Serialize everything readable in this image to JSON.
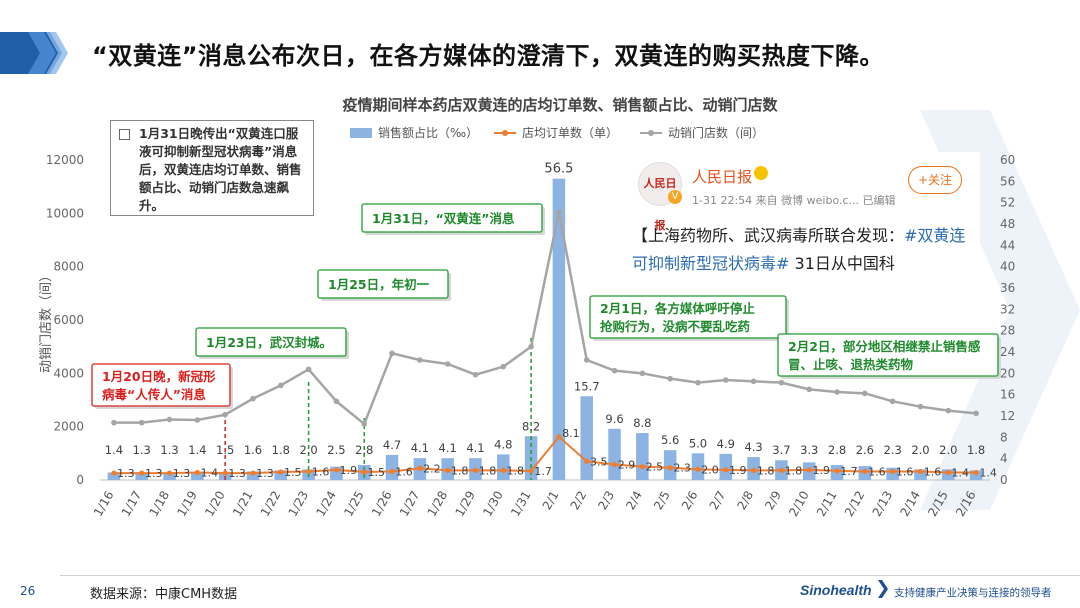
{
  "headline": "“双黄连”消息公布次日，在各方媒体的澄清下，双黄连的购买热度下降。",
  "note": "1月31日晚传出“双黄连口服液可抑制新型冠状病毒”消息后，双黄连店均订单数、销售额占比、动销门店数急速飙升。",
  "weibo": {
    "logo": "人民日报",
    "name": "人民日报",
    "meta": "1-31 22:54  来自 微博 weibo.c...   已编辑",
    "follow": "+关注",
    "body_main": "【上海药物所、武汉病毒所联合发现：",
    "body_tag": "#双黄连可抑制新型冠状病毒#",
    "body_tail": " 31日从中国科"
  },
  "footer": {
    "page": "26",
    "source": "数据来源：中康CMH数据",
    "brand": "Sinohealth",
    "slogan": "支持健康产业决策与连接的领导者"
  },
  "colors": {
    "bar": "#8db3e2",
    "orders": "#ed7d31",
    "stores": "#a5a5a5",
    "annot": "#1f9b32",
    "alert": "#d9201e"
  },
  "chart_data": {
    "type": "bar",
    "title": "疫情期间样本药店双黄连的店均订单数、销售额占比、动销门店数",
    "ylabel": "动销门店数（间）",
    "ylim": [
      0,
      12000
    ],
    "y2lim": [
      0,
      60
    ],
    "yticks": [
      0,
      2000,
      4000,
      6000,
      8000,
      10000,
      12000
    ],
    "y2ticks": [
      0,
      4,
      8,
      12,
      16,
      20,
      24,
      28,
      32,
      36,
      40,
      44,
      48,
      52,
      56,
      60
    ],
    "legend_position": "top",
    "categories": [
      "1/16",
      "1/17",
      "1/18",
      "1/19",
      "1/20",
      "1/21",
      "1/22",
      "1/23",
      "1/24",
      "1/25",
      "1/26",
      "1/27",
      "1/28",
      "1/29",
      "1/30",
      "1/31",
      "2/1",
      "2/2",
      "2/3",
      "2/4",
      "2/5",
      "2/6",
      "2/7",
      "2/8",
      "2/9",
      "2/10",
      "2/11",
      "2/12",
      "2/13",
      "2/14",
      "2/15",
      "2/16"
    ],
    "series": [
      {
        "name": "销售额占比（‰）",
        "type": "bar",
        "axis": "right",
        "values": [
          1.4,
          1.3,
          1.3,
          1.4,
          1.5,
          1.6,
          1.8,
          2.0,
          2.5,
          2.8,
          4.7,
          4.1,
          4.1,
          4.1,
          4.8,
          8.2,
          56.5,
          15.7,
          9.6,
          8.8,
          5.6,
          5.0,
          4.9,
          4.3,
          3.7,
          3.3,
          2.8,
          2.6,
          2.3,
          2.0,
          2.0,
          1.8
        ]
      },
      {
        "name": "店均订单数（单）",
        "type": "line",
        "axis": "right",
        "values": [
          1.3,
          1.3,
          1.3,
          1.4,
          1.3,
          1.3,
          1.5,
          1.6,
          1.9,
          1.5,
          1.6,
          2.2,
          1.8,
          1.8,
          1.8,
          1.7,
          8.1,
          3.5,
          2.9,
          2.5,
          2.3,
          2.0,
          1.9,
          1.8,
          1.8,
          1.9,
          1.7,
          1.6,
          1.6,
          1.6,
          1.4,
          1.4
        ]
      },
      {
        "name": "动销门店数（间）",
        "type": "line",
        "axis": "left",
        "values": [
          2150,
          2150,
          2270,
          2250,
          2450,
          3050,
          3550,
          4150,
          2950,
          2100,
          4750,
          4500,
          4350,
          3950,
          4250,
          5000,
          10050,
          4500,
          4100,
          4000,
          3800,
          3650,
          3750,
          3700,
          3650,
          3400,
          3300,
          3250,
          2950,
          2750,
          2600,
          2500
        ]
      }
    ],
    "bar_labels": [
      "1.4",
      "1.3",
      "1.3",
      "1.4",
      "1.5",
      "1.6",
      "1.8",
      "2.0",
      "2.5",
      "2.8",
      "4.7",
      "4.1",
      "4.1",
      "4.1",
      "4.8",
      "8.2",
      "56.5",
      "15.7",
      "9.6",
      "8.8",
      "5.6",
      "5.0",
      "4.9",
      "4.3",
      "3.7",
      "3.3",
      "2.8",
      "2.6",
      "2.3",
      "2.0",
      "2.0",
      "1.8"
    ],
    "order_labels": [
      "1.3",
      "1.3",
      "1.3",
      "1.4",
      "1.3",
      "1.3",
      "1.5",
      "1.6",
      "1.9",
      "1.5",
      "1.6",
      "2.2",
      "1.8",
      "1.8",
      "1.8",
      "1.7",
      "8.1",
      "3.5",
      "2.9",
      "2.5",
      "2.3",
      "2.0",
      "1.9",
      "1.8",
      "1.8",
      "1.9",
      "1.7",
      "1.6",
      "1.6",
      "1.6",
      "1.4",
      "1.4"
    ],
    "annotations": [
      {
        "text": "1月31日，“双黄连”消息",
        "style": "green"
      },
      {
        "text": "1月25日，年初一",
        "style": "green"
      },
      {
        "text": "1月23日，武汉封城。",
        "style": "green"
      },
      {
        "text": "1月20日晚，新冠形病毒“人传人”消息",
        "style": "red"
      },
      {
        "text": "2月1日，各方媒体呼吁停止抢购行为，没病不要乱吃药",
        "style": "green"
      },
      {
        "text": "2月2日，部分地区相继禁止销售感冒、止咳、退热类药物",
        "style": "green"
      }
    ]
  }
}
